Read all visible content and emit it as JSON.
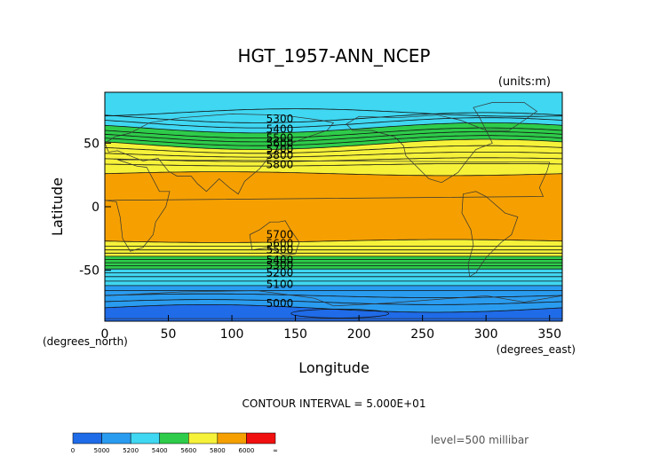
{
  "chart_data": {
    "type": "contour",
    "title": "HGT_1957-ANN_NCEP",
    "units_label": "(units:m)",
    "xlabel": "Longitude",
    "ylabel": "Latitude",
    "x_unit_label": "(degrees_east)",
    "y_unit_label": "(degrees_north)",
    "xlim": [
      0,
      360
    ],
    "ylim": [
      -90,
      90
    ],
    "x_ticks": [
      0,
      50,
      100,
      150,
      200,
      250,
      300,
      350
    ],
    "y_ticks": [
      50,
      0,
      -50
    ],
    "contour_interval_text": "CONTOUR INTERVAL = 5.000E+01",
    "level_text": "level=500 millibar",
    "contour_labels": [
      "5300",
      "5400",
      "5500",
      "5600",
      "5700",
      "5800",
      "5800",
      "5700",
      "5600",
      "5500",
      "5400",
      "5300",
      "5200",
      "5100",
      "5000"
    ],
    "colorbar": {
      "labels": [
        "0",
        "5000",
        "5200",
        "5400",
        "5600",
        "5800",
        "6000",
        "∞"
      ],
      "colors": [
        "#1f6be8",
        "#2a9cf0",
        "#3fd7f2",
        "#2ecc4a",
        "#f6f23a",
        "#f5a000",
        "#f01010"
      ]
    },
    "bands": [
      {
        "range": "< 5000",
        "color": "#1f6be8"
      },
      {
        "range": "5000-5200",
        "color": "#2a9cf0"
      },
      {
        "range": "5200-5400",
        "color": "#3fd7f2"
      },
      {
        "range": "5400-5600",
        "color": "#2ecc4a"
      },
      {
        "range": "5600-5800",
        "color": "#f6f23a"
      },
      {
        "range": ">= 5800",
        "color": "#f5a000"
      }
    ]
  }
}
